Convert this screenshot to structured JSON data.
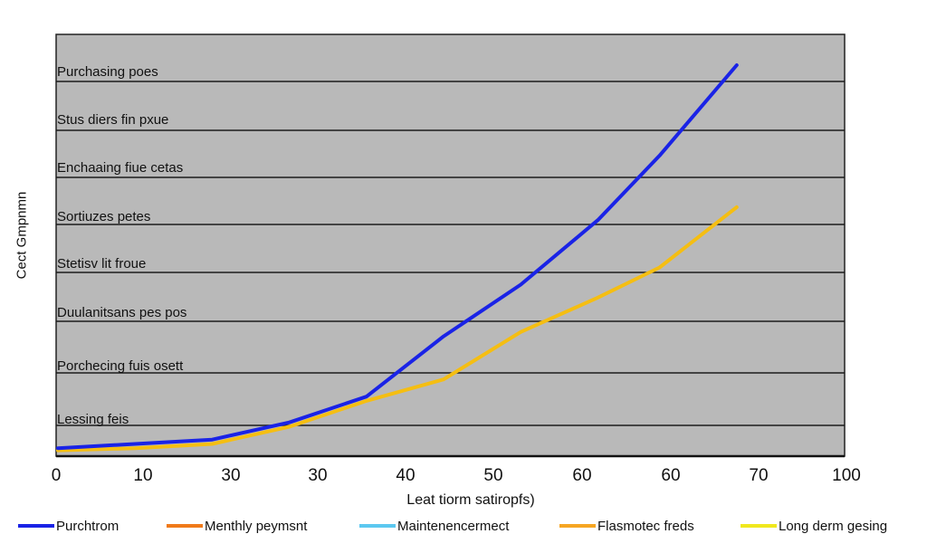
{
  "chart_data": {
    "type": "line",
    "ylabel": "Cect Gmpnmn",
    "xlabel": "Leat tiorm satiropfs)",
    "x_tick_labels": [
      "0",
      "10",
      "30",
      "30",
      "40",
      "50",
      "60",
      "60",
      "70",
      "100"
    ],
    "row_labels": [
      "Purchasing poes",
      "Stus diers fin pxue",
      "Enchaaing fiue cetas",
      "Sortiuzes petes",
      "Stetisv lit froue",
      "Duulanitsans pes pos",
      "Porchecing fuis osett",
      "Lessing feis"
    ],
    "xlim": [
      0,
      100
    ],
    "ylim": [
      0,
      9
    ],
    "grid": true,
    "plot_background": "#b9b9b9",
    "legend_position": "bottom",
    "series": [
      {
        "name": "Purchtrom",
        "color": "#1a23e6",
        "x": [
          0,
          10,
          20,
          30,
          40,
          50,
          60,
          70,
          78,
          88
        ],
        "y": [
          0.1,
          0.2,
          0.3,
          0.7,
          1.3,
          2.7,
          3.9,
          5.4,
          6.9,
          9.0
        ]
      },
      {
        "name": "Long derm gesing",
        "color": "#f5be12",
        "x": [
          0,
          10,
          20,
          30,
          40,
          50,
          60,
          70,
          78,
          88
        ],
        "y": [
          0.05,
          0.1,
          0.2,
          0.6,
          1.2,
          1.7,
          2.8,
          3.6,
          4.3,
          5.7
        ]
      }
    ],
    "legend": [
      {
        "label": "Purchtrom",
        "color": "#1a23e6"
      },
      {
        "label": "Menthly peymsnt",
        "color": "#f07a1a"
      },
      {
        "label": "Maintenencermect",
        "color": "#5cc8f0"
      },
      {
        "label": "Flasmotec freds",
        "color": "#f6a623"
      },
      {
        "label": "Long derm gesing",
        "color": "#f0e81e"
      }
    ]
  }
}
